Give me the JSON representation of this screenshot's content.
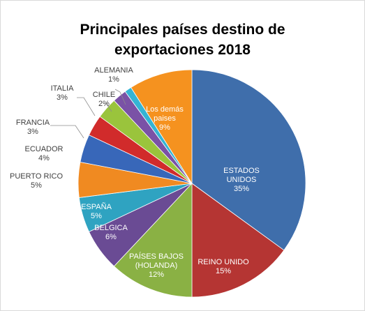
{
  "chart_data": {
    "type": "pie",
    "title_line1": "Principales países destino de",
    "title_line2": "exportaciones 2018",
    "slices": [
      {
        "name": "ESTADOS UNIDOS",
        "label_lines": [
          "ESTADOS",
          "UNIDOS"
        ],
        "value": 35,
        "pct_label": "35%",
        "color": "#3f6eab",
        "label_color": "#ffffff"
      },
      {
        "name": "REINO UNIDO",
        "label_lines": [
          "REINO UNIDO"
        ],
        "value": 15,
        "pct_label": "15%",
        "color": "#b53533",
        "label_color": "#ffffff"
      },
      {
        "name": "PAÍSES BAJOS (HOLANDA)",
        "label_lines": [
          "PAÍSES BAJOS",
          "(HOLANDA)"
        ],
        "value": 12,
        "pct_label": "12%",
        "color": "#8ab144",
        "label_color": "#ffffff"
      },
      {
        "name": "BELGICA",
        "label_lines": [
          "BELGICA"
        ],
        "value": 6,
        "pct_label": "6%",
        "color": "#6a4b94",
        "label_color": "#ffffff"
      },
      {
        "name": "ESPAÑA",
        "label_lines": [
          "ESPAÑA"
        ],
        "value": 5,
        "pct_label": "5%",
        "color": "#2fa3c1",
        "label_color": "#ffffff"
      },
      {
        "name": "PUERTO RICO",
        "label_lines": [
          "PUERTO RICO"
        ],
        "value": 5,
        "pct_label": "5%",
        "color": "#f08a21",
        "label_color": "#404040"
      },
      {
        "name": "ECUADOR",
        "label_lines": [
          "ECUADOR"
        ],
        "value": 4,
        "pct_label": "4%",
        "color": "#3867b9",
        "label_color": "#404040"
      },
      {
        "name": "FRANCIA",
        "label_lines": [
          "FRANCIA"
        ],
        "value": 3,
        "pct_label": "3%",
        "color": "#d12b2b",
        "label_color": "#404040"
      },
      {
        "name": "ITALIA",
        "label_lines": [
          "ITALIA"
        ],
        "value": 3,
        "pct_label": "3%",
        "color": "#9ac43c",
        "label_color": "#404040"
      },
      {
        "name": "CHILE",
        "label_lines": [
          "CHILE"
        ],
        "value": 2,
        "pct_label": "2%",
        "color": "#7a52a6",
        "label_color": "#404040"
      },
      {
        "name": "ALEMANIA",
        "label_lines": [
          "ALEMANIA"
        ],
        "value": 1,
        "pct_label": "1%",
        "color": "#35b4d4",
        "label_color": "#404040"
      },
      {
        "name": "Los demás paises",
        "label_lines": [
          "Los demás",
          "paises"
        ],
        "value": 9,
        "pct_label": "9%",
        "color": "#f5921f",
        "label_color": "#ffffff"
      }
    ],
    "legend": "none",
    "start_angle": "12 o'clock, clockwise"
  }
}
